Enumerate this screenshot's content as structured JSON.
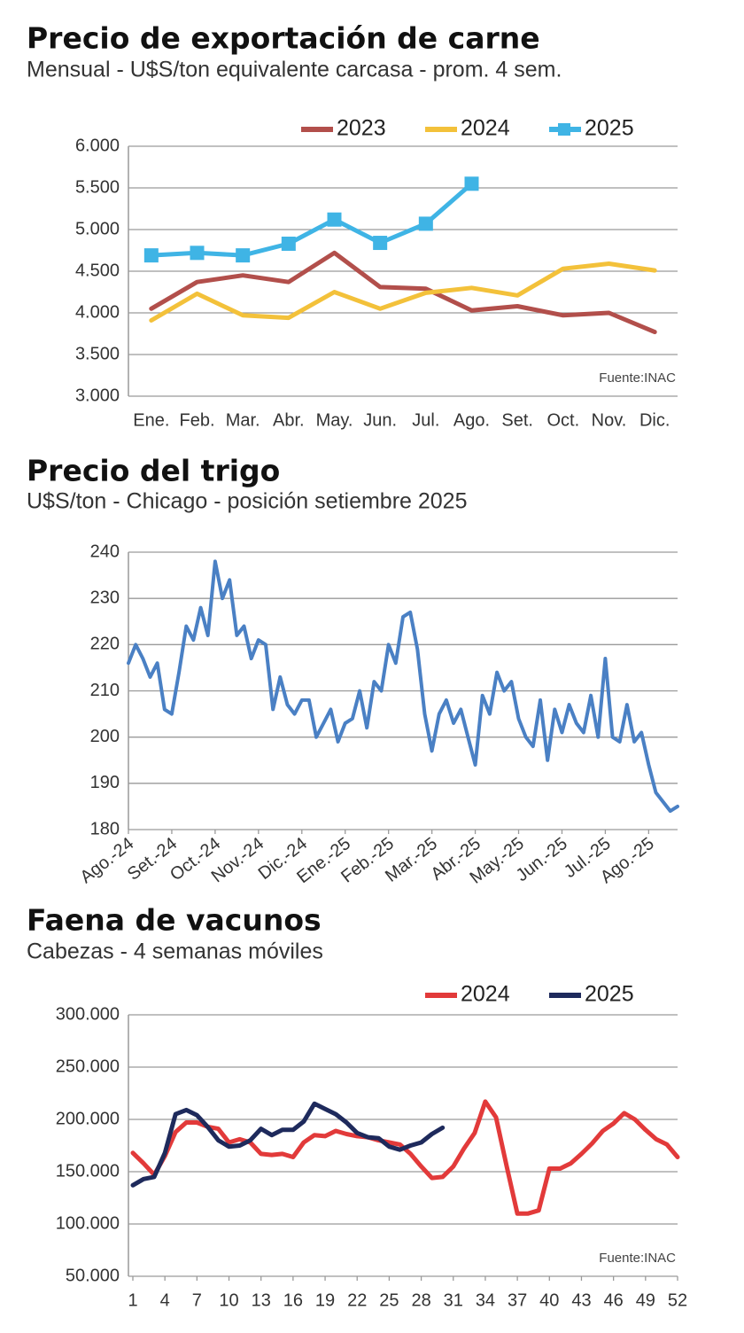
{
  "chart_data": [
    {
      "type": "line",
      "title": "Precio de exportación de carne",
      "subtitle": "Mensual - U$S/ton equivalente carcasa - prom. 4 sem.",
      "categories": [
        "Ene.",
        "Feb.",
        "Mar.",
        "Abr.",
        "May.",
        "Jun.",
        "Jul.",
        "Ago.",
        "Set.",
        "Oct.",
        "Nov.",
        "Dic."
      ],
      "series": [
        {
          "name": "2023",
          "color": "#b24f4b",
          "values": [
            4050,
            4370,
            4450,
            4370,
            4720,
            4310,
            4290,
            4030,
            4080,
            3970,
            4000,
            3770
          ]
        },
        {
          "name": "2024",
          "color": "#f3c13a",
          "values": [
            3910,
            4230,
            3970,
            3940,
            4250,
            4050,
            4240,
            4300,
            4210,
            4530,
            4590,
            4510
          ]
        },
        {
          "name": "2025",
          "color": "#3fb4e5",
          "marker": "square",
          "values": [
            4690,
            4720,
            4690,
            4830,
            5120,
            4840,
            5070,
            5550,
            null,
            null,
            null,
            null
          ]
        }
      ],
      "ylim": [
        3000,
        6000
      ],
      "yticks": [
        {
          "value": 3000,
          "label": "3.000"
        },
        {
          "value": 3500,
          "label": "3.500"
        },
        {
          "value": 4000,
          "label": "4.000"
        },
        {
          "value": 4500,
          "label": "4.500"
        },
        {
          "value": 5000,
          "label": "5.000"
        },
        {
          "value": 5500,
          "label": "5.500"
        },
        {
          "value": 6000,
          "label": "6.000"
        }
      ],
      "grid": true,
      "legend": "top-right",
      "source": "Fuente:INAC"
    },
    {
      "type": "line",
      "title": "Precio del trigo",
      "subtitle": "U$S/ton - Chicago - posición setiembre 2025",
      "values": [
        216,
        220,
        217,
        213,
        216,
        206,
        205,
        214,
        224,
        221,
        228,
        222,
        238,
        230,
        234,
        222,
        224,
        217,
        221,
        220,
        206,
        213,
        207,
        205,
        208,
        208,
        200,
        203,
        206,
        199,
        203,
        204,
        210,
        202,
        212,
        210,
        220,
        216,
        226,
        227,
        219,
        205,
        197,
        205,
        208,
        203,
        206,
        200,
        194,
        209,
        205,
        214,
        210,
        212,
        204,
        200,
        198,
        208,
        195,
        206,
        201,
        207,
        203,
        201,
        209,
        200,
        217,
        200,
        199,
        207,
        199,
        201,
        194,
        188,
        186,
        184,
        185
      ],
      "color": "#4a80c4",
      "xlim": [
        0,
        76
      ],
      "xticks": [
        {
          "value": 0,
          "label": "Ago.-24"
        },
        {
          "value": 6,
          "label": "Set.-24"
        },
        {
          "value": 12,
          "label": "Oct.-24"
        },
        {
          "value": 18,
          "label": "Nov.-24"
        },
        {
          "value": 24,
          "label": "Dic.-24"
        },
        {
          "value": 30,
          "label": "Ene.-25"
        },
        {
          "value": 36,
          "label": "Feb.-25"
        },
        {
          "value": 42,
          "label": "Mar.-25"
        },
        {
          "value": 48,
          "label": "Abr.-25"
        },
        {
          "value": 54,
          "label": "May.-25"
        },
        {
          "value": 60,
          "label": "Jun.-25"
        },
        {
          "value": 66,
          "label": "Jul.-25"
        },
        {
          "value": 72,
          "label": "Ago.-25"
        }
      ],
      "ylim": [
        180,
        240
      ],
      "yticks": [
        180,
        190,
        200,
        210,
        220,
        230,
        240
      ],
      "grid": true
    },
    {
      "type": "line",
      "title": "Faena de vacunos",
      "subtitle": "Cabezas - 4 semanas móviles",
      "x": [
        1,
        2,
        3,
        4,
        5,
        6,
        7,
        8,
        9,
        10,
        11,
        12,
        13,
        14,
        15,
        16,
        17,
        18,
        19,
        20,
        21,
        22,
        23,
        24,
        25,
        26,
        27,
        28,
        29,
        30,
        31,
        32,
        33,
        34,
        35,
        36,
        37,
        38,
        39,
        40,
        41,
        42,
        43,
        44,
        45,
        46,
        47,
        48,
        49,
        50,
        51,
        52
      ],
      "series": [
        {
          "name": "2024",
          "color": "#e23a3a",
          "values": [
            168000,
            158000,
            147000,
            165000,
            188000,
            197000,
            197000,
            193000,
            191000,
            178000,
            181000,
            178000,
            167000,
            166000,
            167000,
            164000,
            178000,
            185000,
            184000,
            189000,
            186000,
            184000,
            183000,
            180000,
            178000,
            176000,
            167000,
            155000,
            144000,
            145000,
            155000,
            172000,
            187000,
            217000,
            202000,
            155000,
            110000,
            110000,
            113000,
            153000,
            153000,
            158000,
            167000,
            177000,
            189000,
            196000,
            206000,
            200000,
            190000,
            181000,
            176000,
            164000
          ]
        },
        {
          "name": "2025",
          "color": "#1e2a5c",
          "values": [
            137000,
            143000,
            145000,
            168000,
            205000,
            209000,
            204000,
            193000,
            180000,
            174000,
            175000,
            180000,
            191000,
            185000,
            190000,
            190000,
            198000,
            215000,
            210000,
            205000,
            197000,
            187000,
            183000,
            182000,
            174000,
            171000,
            175000,
            178000,
            186000,
            192000,
            null,
            null,
            null,
            null,
            null,
            null,
            null,
            null,
            null,
            null,
            null,
            null,
            null,
            null,
            null,
            null,
            null,
            null,
            null,
            null,
            null,
            null
          ]
        }
      ],
      "xlim": [
        1,
        52
      ],
      "xticks": [
        1,
        4,
        7,
        10,
        13,
        16,
        19,
        22,
        25,
        28,
        31,
        34,
        37,
        40,
        43,
        46,
        49,
        52
      ],
      "ylim": [
        50000,
        300000
      ],
      "yticks": [
        {
          "value": 50000,
          "label": "50.000"
        },
        {
          "value": 100000,
          "label": "100.000"
        },
        {
          "value": 150000,
          "label": "150.000"
        },
        {
          "value": 200000,
          "label": "200.000"
        },
        {
          "value": 250000,
          "label": "250.000"
        },
        {
          "value": 300000,
          "label": "300.000"
        }
      ],
      "grid": true,
      "legend": "top-right",
      "source": "Fuente:INAC"
    }
  ]
}
